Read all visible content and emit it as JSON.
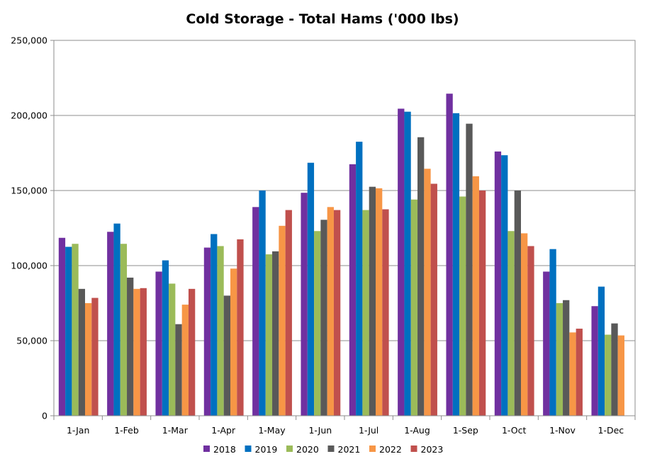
{
  "chart_data": {
    "type": "bar",
    "title": "Cold Storage - Total Hams ('000 lbs)",
    "xlabel": "",
    "ylabel": "",
    "ylim": [
      0,
      250000
    ],
    "yticks": [
      "0",
      "50,000",
      "100,000",
      "150,000",
      "200,000",
      "250,000"
    ],
    "grid": true,
    "legend_position": "bottom",
    "categories": [
      "1-Jan",
      "1-Feb",
      "1-Mar",
      "1-Apr",
      "1-May",
      "1-Jun",
      "1-Jul",
      "1-Aug",
      "1-Sep",
      "1-Oct",
      "1-Nov",
      "1-Dec"
    ],
    "series": [
      {
        "name": "2018",
        "color": "#7030A0",
        "values": [
          118500,
          122500,
          96000,
          112000,
          139000,
          148500,
          167500,
          204500,
          214500,
          176000,
          96000,
          73000
        ]
      },
      {
        "name": "2019",
        "color": "#0070C0",
        "values": [
          112500,
          128000,
          103500,
          121000,
          150000,
          168500,
          182500,
          202500,
          201500,
          173500,
          111000,
          86000
        ]
      },
      {
        "name": "2020",
        "color": "#9BBB59",
        "values": [
          114500,
          114500,
          88000,
          113000,
          107500,
          123000,
          137000,
          144000,
          146000,
          123000,
          75000,
          54000
        ]
      },
      {
        "name": "2021",
        "color": "#595959",
        "values": [
          84500,
          92000,
          61000,
          80000,
          109500,
          130500,
          152500,
          185500,
          194500,
          150000,
          77000,
          61500
        ]
      },
      {
        "name": "2022",
        "color": "#F79646",
        "values": [
          75000,
          84500,
          74000,
          98000,
          126500,
          139000,
          151500,
          164500,
          159500,
          121500,
          55500,
          53500
        ]
      },
      {
        "name": "2023",
        "color": "#C0504D",
        "values": [
          78500,
          85000,
          84500,
          117500,
          137000,
          137000,
          137500,
          154500,
          150000,
          113000,
          58000,
          null
        ]
      }
    ]
  }
}
